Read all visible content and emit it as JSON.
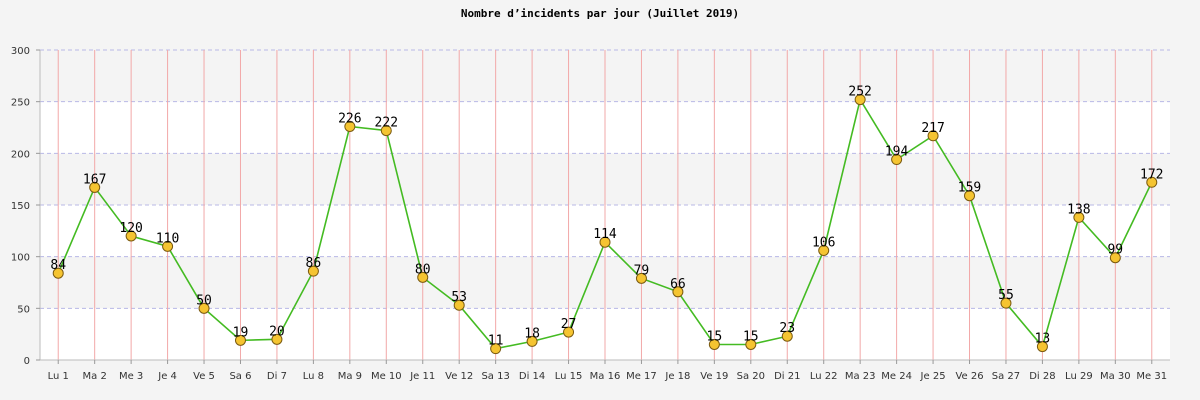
{
  "chart_data": {
    "type": "line",
    "title": "Nombre d’incidents par jour (Juillet 2019)",
    "xlabel": "",
    "ylabel": "",
    "ylim": [
      0,
      300
    ],
    "yticks": [
      0,
      50,
      100,
      150,
      200,
      250,
      300
    ],
    "grid": true,
    "categories": [
      "Lu 1",
      "Ma 2",
      "Me 3",
      "Je 4",
      "Ve 5",
      "Sa 6",
      "Di 7",
      "Lu 8",
      "Ma 9",
      "Me 10",
      "Je 11",
      "Ve 12",
      "Sa 13",
      "Di 14",
      "Lu 15",
      "Ma 16",
      "Me 17",
      "Je 18",
      "Ve 19",
      "Sa 20",
      "Di 21",
      "Lu 22",
      "Ma 23",
      "Me 24",
      "Je 25",
      "Ve 26",
      "Sa 27",
      "Di 28",
      "Lu 29",
      "Ma 30",
      "Me 31"
    ],
    "series": [
      {
        "values": [
          84,
          167,
          120,
          110,
          50,
          19,
          20,
          86,
          226,
          222,
          80,
          53,
          11,
          18,
          27,
          114,
          79,
          66,
          15,
          15,
          23,
          106,
          252,
          194,
          217,
          159,
          55,
          13,
          138,
          99,
          172
        ]
      }
    ],
    "colors": {
      "line": "#44bb22",
      "marker_fill": "#f5c431",
      "marker_stroke": "#7a5a10",
      "band": "#f4f4f4",
      "plot_bg": "#ffffff",
      "vgrid": "#f2a8a8",
      "hgrid": "#b8b8e6"
    }
  }
}
